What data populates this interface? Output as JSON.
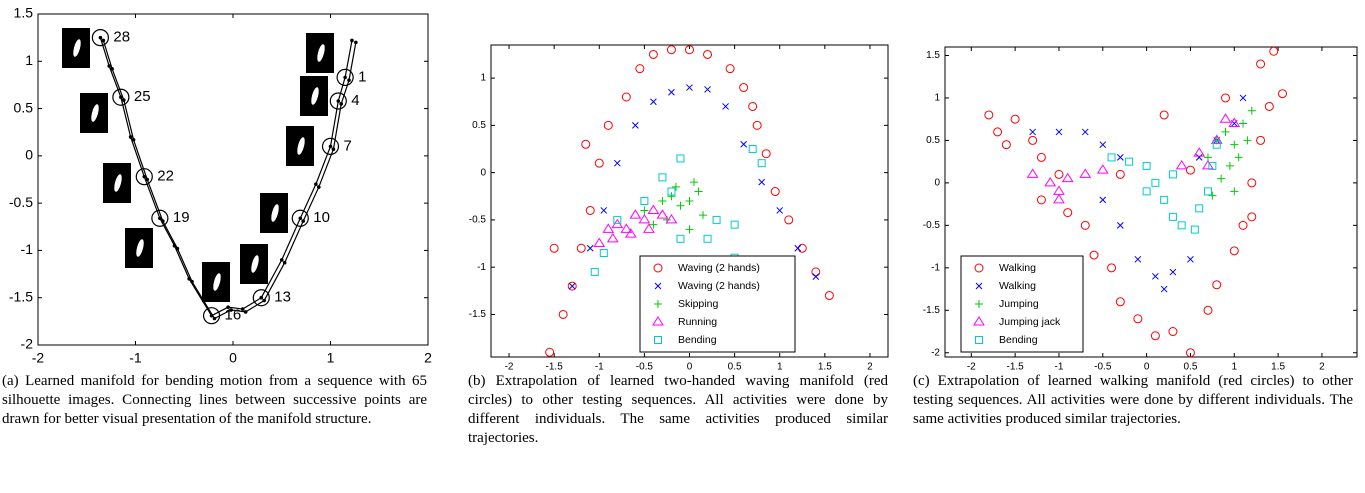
{
  "chart_data": [
    {
      "type": "line",
      "caption": "(a) Learned manifold for bending motion from a sequence with 65 silhouette images. Connecting lines between successive points are drawn for better visual presentation of the manifold structure.",
      "xlim": [
        -2,
        2
      ],
      "ylim": [
        -2,
        1.5
      ],
      "xticks": [
        -2,
        -1,
        0,
        1,
        2
      ],
      "yticks": [
        -2,
        -1.5,
        -1,
        -0.5,
        0,
        0.5,
        1,
        1.5
      ],
      "series": [
        {
          "color": "#000000",
          "marker": "dot",
          "x": [
            1.22,
            1.15,
            1.08,
            1.0,
            0.85,
            0.69,
            0.5,
            0.29,
            0.1,
            -0.05,
            -0.22,
            -0.45,
            -0.6,
            -0.75,
            -0.91,
            -1.05,
            -1.15,
            -1.27,
            -1.36
          ],
          "values": [
            1.22,
            0.83,
            0.58,
            0.1,
            -0.3,
            -0.66,
            -1.1,
            -1.5,
            -1.62,
            -1.6,
            -1.69,
            -1.3,
            -0.95,
            -0.66,
            -0.22,
            0.2,
            0.62,
            0.95,
            1.25
          ]
        },
        {
          "color": "#000000",
          "marker": "dot",
          "x": [
            1.26,
            1.19,
            1.11,
            1.03,
            0.88,
            0.72,
            0.53,
            0.32,
            0.13,
            -0.02,
            -0.19,
            -0.42,
            -0.57,
            -0.72,
            -0.88,
            -1.02,
            -1.12,
            -1.24,
            -1.33
          ],
          "values": [
            1.2,
            0.8,
            0.55,
            0.07,
            -0.33,
            -0.69,
            -1.13,
            -1.53,
            -1.65,
            -1.63,
            -1.72,
            -1.33,
            -0.98,
            -0.69,
            -0.25,
            0.17,
            0.59,
            0.92,
            1.22
          ]
        }
      ],
      "annotations": [
        {
          "label": "28",
          "x": -1.36,
          "y": 1.25
        },
        {
          "label": "25",
          "x": -1.15,
          "y": 0.62
        },
        {
          "label": "22",
          "x": -0.91,
          "y": -0.22
        },
        {
          "label": "19",
          "x": -0.75,
          "y": -0.66
        },
        {
          "label": "16",
          "x": -0.22,
          "y": -1.69
        },
        {
          "label": "13",
          "x": 0.29,
          "y": -1.5
        },
        {
          "label": "10",
          "x": 0.69,
          "y": -0.66
        },
        {
          "label": "7",
          "x": 1.0,
          "y": 0.1
        },
        {
          "label": "4",
          "x": 1.08,
          "y": 0.58
        },
        {
          "label": "1",
          "x": 1.15,
          "y": 0.83
        }
      ]
    },
    {
      "type": "scatter",
      "caption": "(b) Extrapolation of learned two-handed waving manifold (red circles) to other testing sequences. All activities were done by different individuals. The same activities produced similar trajectories.",
      "xlim": [
        -2.2,
        2.2
      ],
      "ylim": [
        -1.95,
        1.35
      ],
      "xticks": [
        -2,
        -1.5,
        -1,
        -0.5,
        0,
        0.5,
        1,
        1.5,
        2
      ],
      "yticks": [
        -1.5,
        -1,
        -0.5,
        0,
        0.5,
        1
      ],
      "legend": "lower right",
      "series": [
        {
          "name": "Waving (2 hands)",
          "color": "#ff0000",
          "marker": "circle",
          "x": [
            -1.55,
            -1.4,
            -1.3,
            -1.2,
            -1.1,
            -1.0,
            -0.9,
            -0.7,
            -0.55,
            -0.4,
            -0.2,
            0,
            0.2,
            0.45,
            0.6,
            0.75,
            0.85,
            0.95,
            1.1,
            1.25,
            1.4,
            1.55,
            -1.5,
            -1.15,
            0.7
          ],
          "values": [
            -1.9,
            -1.5,
            -1.2,
            -0.8,
            -0.4,
            0.1,
            0.5,
            0.8,
            1.1,
            1.25,
            1.3,
            1.3,
            1.25,
            1.1,
            0.9,
            0.5,
            0.2,
            -0.2,
            -0.5,
            -0.8,
            -1.05,
            -1.3,
            -0.8,
            0.3,
            0.7
          ]
        },
        {
          "name": "Waving (2 hands)",
          "color": "#0000ff",
          "marker": "x",
          "x": [
            -1.3,
            -1.1,
            -0.95,
            -0.8,
            -0.6,
            -0.4,
            -0.2,
            0,
            0.2,
            0.4,
            0.6,
            0.8,
            1.0,
            1.2,
            1.4
          ],
          "values": [
            -1.2,
            -0.8,
            -0.4,
            0.1,
            0.5,
            0.75,
            0.85,
            0.9,
            0.88,
            0.7,
            0.3,
            -0.1,
            -0.4,
            -0.8,
            -1.1
          ]
        },
        {
          "name": "Skipping",
          "color": "#00cc00",
          "marker": "plus",
          "x": [
            -0.5,
            -0.3,
            -0.2,
            -0.1,
            0,
            0.1,
            -0.25,
            0.15,
            -0.4,
            0,
            0.05,
            -0.15
          ],
          "values": [
            -0.4,
            -0.3,
            -0.25,
            -0.35,
            -0.3,
            -0.2,
            -0.5,
            -0.45,
            -0.55,
            -0.6,
            -0.1,
            -0.15
          ]
        },
        {
          "name": "Running",
          "color": "#ff00ff",
          "marker": "triangle",
          "x": [
            -1.0,
            -0.9,
            -0.8,
            -0.7,
            -0.6,
            -0.5,
            -0.4,
            -0.3,
            -0.85,
            -0.65,
            -0.45,
            -0.2
          ],
          "values": [
            -0.75,
            -0.6,
            -0.55,
            -0.6,
            -0.45,
            -0.5,
            -0.4,
            -0.45,
            -0.7,
            -0.65,
            -0.6,
            -0.5
          ]
        },
        {
          "name": "Bending",
          "color": "#00cccc",
          "marker": "square",
          "x": [
            -1.05,
            -0.95,
            -0.8,
            -0.5,
            -0.3,
            -0.1,
            -0.1,
            0.2,
            0.3,
            0.5,
            0.5,
            0.7,
            0.8,
            -0.2
          ],
          "values": [
            -1.05,
            -0.85,
            -0.5,
            -0.3,
            -0.05,
            0.15,
            -0.7,
            -0.7,
            -0.5,
            -0.55,
            -0.9,
            0.25,
            0.1,
            -0.2
          ]
        }
      ]
    },
    {
      "type": "scatter",
      "caption": "(c) Extrapolation of learned walking manifold (red circles) to other testing sequences. All activities were done by different individuals. The same activities produced similar trajectories.",
      "xlim": [
        -2.3,
        2.4
      ],
      "ylim": [
        -2.05,
        1.6
      ],
      "xticks": [
        -2,
        -1.5,
        -1,
        -0.5,
        0,
        0.5,
        1,
        1.5,
        2
      ],
      "yticks": [
        -2,
        -1.5,
        -1,
        -0.5,
        0,
        0.5,
        1,
        1.5
      ],
      "legend": "lower left",
      "series": [
        {
          "name": "Walking",
          "color": "#ff0000",
          "marker": "circle",
          "x": [
            -1.8,
            -1.7,
            -1.5,
            -1.3,
            -1.2,
            -1.0,
            -1.2,
            -0.9,
            -0.7,
            -0.6,
            -0.4,
            -0.3,
            -0.1,
            0.1,
            0.3,
            0.5,
            0.7,
            0.8,
            1.0,
            1.1,
            1.2,
            1.3,
            1.4,
            1.45,
            1.3,
            1.55,
            0.9,
            1.2,
            -1.6,
            0.2,
            -0.3,
            0.5
          ],
          "values": [
            0.8,
            0.6,
            0.75,
            0.5,
            0.3,
            0.1,
            -0.2,
            -0.35,
            -0.5,
            -0.85,
            -1.0,
            -1.4,
            -1.6,
            -1.8,
            -1.75,
            -2.0,
            -1.5,
            -1.2,
            -0.8,
            -0.5,
            0,
            0.5,
            0.9,
            1.55,
            1.4,
            1.05,
            1.0,
            -0.4,
            0.45,
            0.8,
            0.1,
            0.15
          ]
        },
        {
          "name": "Walking",
          "color": "#0000ff",
          "marker": "x",
          "x": [
            -1.3,
            -1.0,
            -0.7,
            -0.5,
            -0.3,
            -0.5,
            -0.3,
            -0.1,
            0.1,
            0.3,
            0.5,
            0.6,
            0.8,
            1.0,
            1.1,
            0.2
          ],
          "values": [
            0.6,
            0.6,
            0.6,
            0.45,
            0.3,
            -0.2,
            -0.5,
            -0.9,
            -1.1,
            -1.05,
            -0.9,
            0.3,
            0.5,
            0.7,
            1.0,
            -1.25
          ]
        },
        {
          "name": "Jumping",
          "color": "#00cc00",
          "marker": "plus",
          "x": [
            0.7,
            0.8,
            0.9,
            1.0,
            1.1,
            1.2,
            0.95,
            1.05,
            0.85,
            1.15,
            0.75,
            1.0
          ],
          "values": [
            0.3,
            0.5,
            0.6,
            0.45,
            0.7,
            0.85,
            0.2,
            0.3,
            0.05,
            0.5,
            -0.15,
            -0.1
          ]
        },
        {
          "name": "Jumping jack",
          "color": "#ff00ff",
          "marker": "triangle",
          "x": [
            -1.3,
            -1.1,
            -1.0,
            -0.9,
            -0.7,
            -0.5,
            -1.0,
            0.4,
            0.6,
            0.8,
            1.0,
            0.9,
            0.7
          ],
          "values": [
            0.1,
            0,
            -0.1,
            0.05,
            0.1,
            0.15,
            -0.2,
            0.2,
            0.35,
            0.5,
            0.7,
            0.75,
            0.2
          ]
        },
        {
          "name": "Bending",
          "color": "#00cccc",
          "marker": "square",
          "x": [
            -0.4,
            -0.2,
            0,
            0.1,
            0.2,
            0.3,
            0.4,
            0.55,
            0.6,
            0.7,
            0.75,
            0.8,
            0.3,
            0.0
          ],
          "values": [
            0.3,
            0.25,
            0.2,
            0,
            -0.2,
            -0.4,
            -0.5,
            -0.55,
            -0.3,
            -0.1,
            0.2,
            0.45,
            0.1,
            -0.1
          ]
        }
      ]
    }
  ]
}
